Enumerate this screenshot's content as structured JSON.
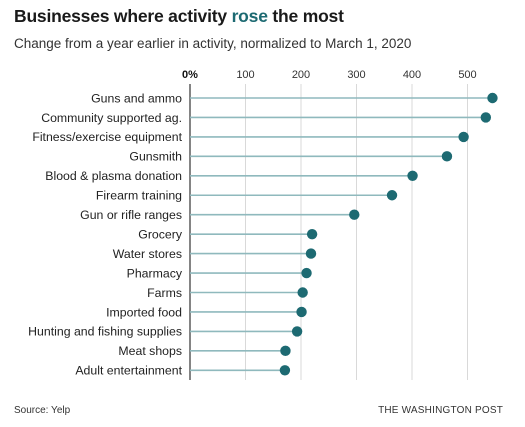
{
  "header": {
    "title_pre": "Businesses where activity ",
    "title_highlight": "rose",
    "title_post": " the most",
    "subtitle": "Change from a year earlier in activity, normalized to March 1, 2020"
  },
  "footer": {
    "source": "Source: Yelp",
    "credit": "THE WASHINGTON POST"
  },
  "colors": {
    "dot": "#1d6a72",
    "stem": "#8fb9bd",
    "grid": "#d9d9d9",
    "highlight": "#1d6a72"
  },
  "chart_data": {
    "type": "lollipop",
    "orientation": "horizontal",
    "title": "Businesses where activity rose the most",
    "subtitle": "Change from a year earlier in activity, normalized to March 1, 2020",
    "x_ticks": [
      0,
      100,
      200,
      300,
      400,
      500
    ],
    "x_tick_labels": [
      "0%",
      "100",
      "200",
      "300",
      "400",
      "500"
    ],
    "xlim": [
      0,
      550
    ],
    "grid": true,
    "categories": [
      "Guns and ammo",
      "Community supported ag.",
      "Fitness/exercise equipment",
      "Gunsmith",
      "Blood & plasma donation",
      "Firearm training",
      "Gun or rifle ranges",
      "Grocery",
      "Water stores",
      "Pharmacy",
      "Farms",
      "Imported food",
      "Hunting and fishing supplies",
      "Meat shops",
      "Adult entertainment"
    ],
    "values": [
      545,
      533,
      493,
      463,
      401,
      364,
      296,
      220,
      218,
      210,
      203,
      201,
      193,
      172,
      171
    ]
  }
}
